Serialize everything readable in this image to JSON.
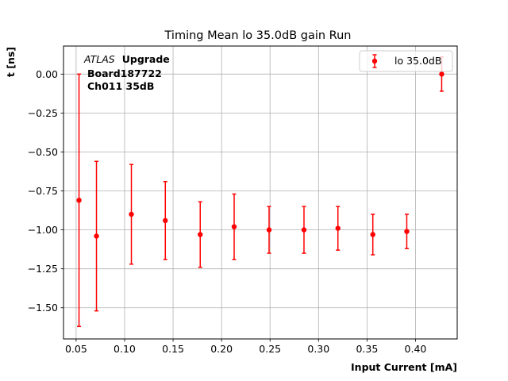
{
  "chart_data": {
    "type": "scatter",
    "title": "Timing Mean lo 35.0dB gain Run",
    "xlabel": "Input Current [mA]",
    "ylabel": "t [ns]",
    "xlim": [
      0.037,
      0.443
    ],
    "ylim": [
      -1.7,
      0.18
    ],
    "xticks": [
      0.05,
      0.1,
      0.15,
      0.2,
      0.25,
      0.3,
      0.35,
      0.4
    ],
    "xtick_labels": [
      "0.05",
      "0.10",
      "0.15",
      "0.20",
      "0.25",
      "0.30",
      "0.35",
      "0.40"
    ],
    "yticks": [
      0.0,
      -0.25,
      -0.5,
      -0.75,
      -1.0,
      -1.25,
      -1.5
    ],
    "ytick_labels": [
      "0.00",
      "−0.25",
      "−0.50",
      "−0.75",
      "−1.00",
      "−1.25",
      "−1.50"
    ],
    "grid": true,
    "legend": "top-right",
    "annotation": {
      "line1_italic": "ATLAS",
      "line1_bold": "Upgrade",
      "line2": "Board187722",
      "line3": "Ch011 35dB"
    },
    "series": [
      {
        "name": "lo 35.0dB",
        "color": "#ff0000",
        "x": [
          0.053,
          0.071,
          0.107,
          0.142,
          0.178,
          0.213,
          0.249,
          0.285,
          0.32,
          0.356,
          0.391,
          0.427
        ],
        "y": [
          -0.81,
          -1.04,
          -0.9,
          -0.94,
          -1.03,
          -0.98,
          -1.0,
          -1.0,
          -0.99,
          -1.03,
          -1.01,
          0.0
        ],
        "err": [
          0.81,
          0.48,
          0.32,
          0.25,
          0.21,
          0.21,
          0.15,
          0.15,
          0.14,
          0.13,
          0.11,
          0.11
        ]
      }
    ]
  }
}
